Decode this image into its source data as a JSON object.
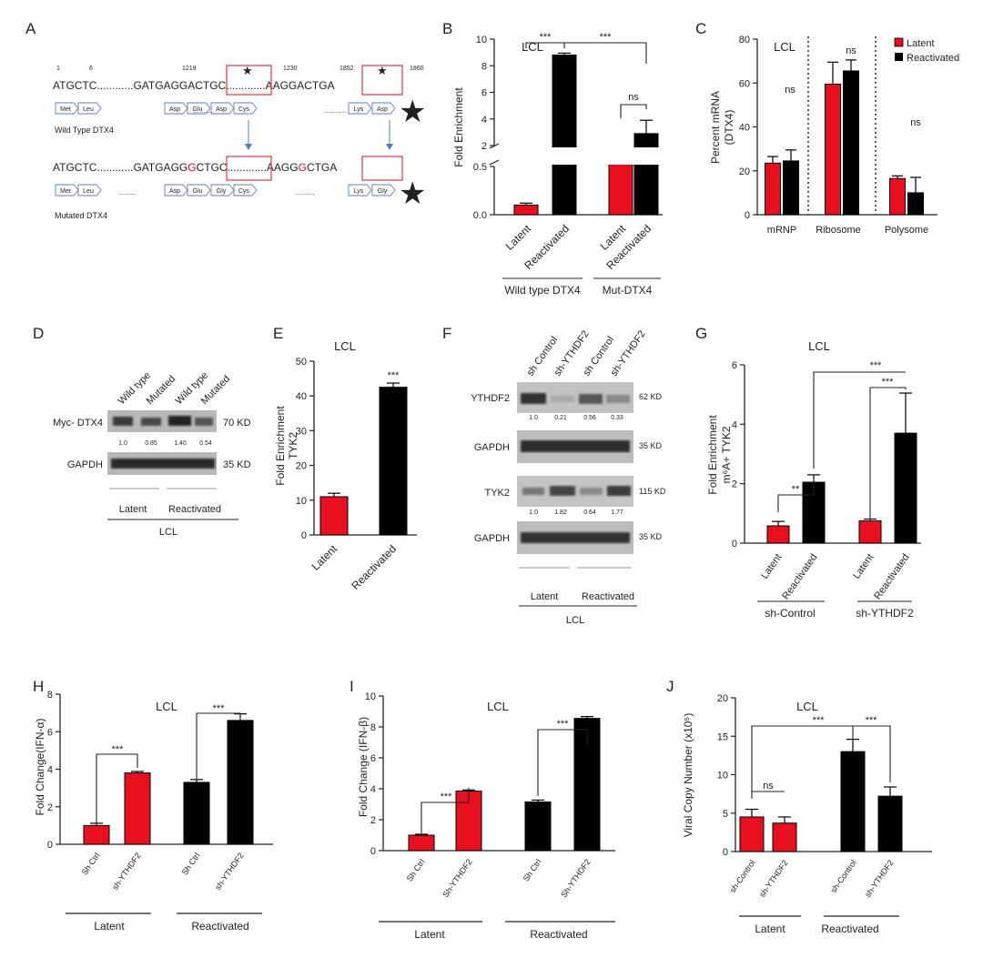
{
  "panel_letters": [
    "A",
    "B",
    "C",
    "D",
    "E",
    "F",
    "G",
    "H",
    "I",
    "J"
  ],
  "panelA": {
    "positions": [
      "1",
      "6",
      "1219",
      "1230",
      "1852",
      "1860"
    ],
    "wt_seq": [
      "ATGCTC............GATGA",
      "GGACT",
      "GC.............AAG",
      "GACT",
      "GA"
    ],
    "wt_aa": [
      "Met",
      "Leu",
      "Asp",
      "Glu",
      "Asp",
      "Cys",
      "Lys",
      "Asp"
    ],
    "wt_label": "Wild Type DTX4",
    "mut_seq": [
      "ATGCTC............GATGA",
      "GG",
      "G",
      "CTGC.............AAGG",
      "G",
      "CTGA"
    ],
    "mut_aa": [
      "Met",
      "Leu",
      "Asp",
      "Glu",
      "Gly",
      "Cys",
      "Lys",
      "Gly"
    ],
    "mut_dots1": "..........",
    "mut_dots2": "...........",
    "mut_label": "Mutated  DTX4",
    "star_color": "#e8101e",
    "box_color": "#e8343c"
  },
  "chart_data": [
    {
      "id": "B",
      "type": "bar",
      "title": "LCL",
      "ylabel": "Fold Enrichment",
      "categories": [
        "Latent",
        "Reactivated",
        "Latent",
        "Reactivated"
      ],
      "values": [
        0.1,
        8.8,
        1.2,
        2.9
      ],
      "errors": [
        0.02,
        0.15,
        0.5,
        1.0
      ],
      "colors": [
        "#e8101e",
        "#000000",
        "#e8101e",
        "#000000"
      ],
      "yticks_lower": [
        "0.0",
        "0.5"
      ],
      "yticks_upper": [
        "2",
        "4",
        "6",
        "8",
        "10"
      ],
      "groups": [
        "Wild type DTX4",
        "Mut-DTX4"
      ],
      "significance": [
        "***",
        "***",
        "ns"
      ]
    },
    {
      "id": "C",
      "type": "bar",
      "title": "LCL",
      "ylabel": "Percent mRNA (DTX4)",
      "ylim": [
        0,
        80
      ],
      "categories": [
        "mRNP",
        "Ribosome",
        "Polysome"
      ],
      "series": [
        {
          "name": "Latent",
          "color": "#e8101e",
          "values": [
            23.5,
            59.5,
            16.5
          ],
          "errors": [
            3,
            10,
            1.2
          ]
        },
        {
          "name": "Reactivated",
          "color": "#000000",
          "values": [
            24.5,
            65.5,
            10
          ],
          "errors": [
            5,
            5,
            7
          ]
        }
      ],
      "yticks": [
        "0",
        "20",
        "40",
        "60",
        "80"
      ],
      "significance": [
        "ns",
        "ns",
        "ns"
      ]
    },
    {
      "id": "E",
      "type": "bar",
      "title": "LCL",
      "ylabel": "Fold Enrichment TYK2",
      "ylim": [
        0,
        50
      ],
      "categories": [
        "Latent",
        "Reactivated"
      ],
      "values": [
        11,
        42.5
      ],
      "errors": [
        1,
        1.2
      ],
      "colors": [
        "#e8101e",
        "#000000"
      ],
      "yticks": [
        "0",
        "10",
        "20",
        "30",
        "40",
        "50"
      ],
      "significance": [
        "***"
      ]
    },
    {
      "id": "G",
      "type": "bar",
      "title": "LCL",
      "ylabel": "Fold Enrichment m⁶A+ TYK2",
      "ylim": [
        0,
        6
      ],
      "categories": [
        "Latent",
        "Reactivated",
        "Latent",
        "Reactivated"
      ],
      "values": [
        0.58,
        2.05,
        0.75,
        3.7
      ],
      "errors": [
        0.15,
        0.25,
        0.06,
        1.35
      ],
      "colors": [
        "#e8101e",
        "#000000",
        "#e8101e",
        "#000000"
      ],
      "yticks": [
        "0",
        "2",
        "4",
        "6"
      ],
      "groups": [
        "sh-Control",
        "sh-YTHDF2"
      ],
      "significance": [
        "**",
        "***",
        "***"
      ]
    },
    {
      "id": "H",
      "type": "bar",
      "title": "LCL",
      "ylabel": "Fold  Change(IFN-α)",
      "ylim": [
        0,
        8
      ],
      "categories": [
        "Sh Ctrl",
        "sh-YTHDF2",
        "Sh Ctrl",
        "sh-YTHDF2"
      ],
      "values": [
        1.0,
        3.8,
        3.3,
        6.6
      ],
      "errors": [
        0.12,
        0.08,
        0.15,
        0.35
      ],
      "colors": [
        "#e8101e",
        "#e8101e",
        "#000000",
        "#000000"
      ],
      "yticks": [
        "0",
        "2",
        "4",
        "6",
        "8"
      ],
      "groups": [
        "Latent",
        "Reactivated"
      ],
      "significance": [
        "***",
        "***"
      ]
    },
    {
      "id": "I",
      "type": "bar",
      "title": "LCL",
      "ylabel": "Fold  Change (IFN-β)",
      "ylim": [
        0,
        10
      ],
      "categories": [
        "Sh Ctrl",
        "Sh-YTHDF2",
        "Sh Ctrl",
        "Sh-YTHDF2"
      ],
      "values": [
        1.0,
        3.85,
        3.15,
        8.55
      ],
      "errors": [
        0.06,
        0.07,
        0.12,
        0.12
      ],
      "colors": [
        "#e8101e",
        "#e8101e",
        "#000000",
        "#000000"
      ],
      "yticks": [
        "0",
        "2",
        "4",
        "6",
        "8",
        "10"
      ],
      "groups": [
        "Latent",
        "Reactivated"
      ],
      "significance": [
        "***",
        "***"
      ]
    },
    {
      "id": "J",
      "type": "bar",
      "title": "LCL",
      "ylabel": "Viral Copy Number (x10⁵)",
      "ylim": [
        0,
        20
      ],
      "categories": [
        "sh-Control",
        "sh-YTHDF2",
        "sh-Control",
        "sh-YTHDF2"
      ],
      "values": [
        4.5,
        3.7,
        13.0,
        7.2
      ],
      "errors": [
        1.0,
        0.8,
        1.6,
        1.2
      ],
      "colors": [
        "#e8101e",
        "#e8101e",
        "#000000",
        "#000000"
      ],
      "yticks": [
        "0",
        "5",
        "10",
        "15",
        "20"
      ],
      "groups": [
        "Latent",
        "Reactivated"
      ],
      "significance": [
        "ns",
        "***",
        "***"
      ]
    }
  ],
  "blots": {
    "D": {
      "lanes": [
        "Wild type",
        "Mutated",
        "Wild type",
        "Mutated"
      ],
      "protein": "Myc- DTX4",
      "protein_kd": "70 KD",
      "quant": [
        "1.0",
        "0.85",
        "1.40",
        "0.54"
      ],
      "loading": "GAPDH",
      "loading_kd": "35 KD",
      "groups": [
        "Latent",
        "Reactivated"
      ],
      "cell": "LCL"
    },
    "F": {
      "lanes": [
        "sh Control",
        "sh-YTHDF2",
        "sh Control",
        "sh-YTHDF2"
      ],
      "rows": [
        {
          "label": "YTHDF2",
          "kd": "62 KD",
          "quant": [
            "1.0",
            "0.21",
            "0.56",
            "0.33"
          ]
        },
        {
          "label": "GAPDH",
          "kd": "35 KD"
        },
        {
          "label": "TYK2",
          "kd": "115 KD",
          "quant": [
            "1.0",
            "1.82",
            "0.64",
            "1.77"
          ]
        },
        {
          "label": "GAPDH",
          "kd": "35 KD"
        }
      ],
      "groups": [
        "Latent",
        "Reactivated"
      ],
      "cell": "LCL"
    }
  },
  "legendC": [
    "Latent",
    "Reactivated"
  ]
}
